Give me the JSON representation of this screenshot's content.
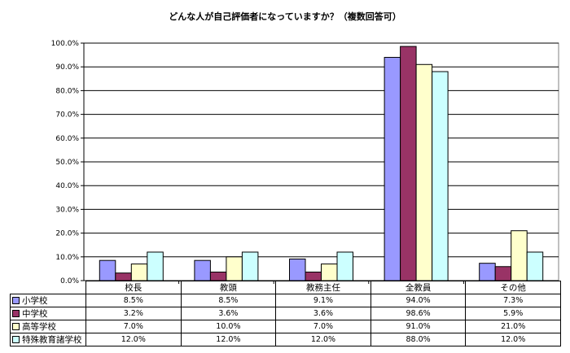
{
  "chart_data": {
    "type": "bar",
    "title": "どんな人が自己評価者になっていますか？（複数回答可）",
    "categories": [
      "校長",
      "教頭",
      "教務主任",
      "全教員",
      "その他"
    ],
    "series": [
      {
        "name": "小学校",
        "color": "#9999FF",
        "values": [
          8.5,
          8.5,
          9.1,
          94.0,
          7.3
        ],
        "labels": [
          "8.5%",
          "8.5%",
          "9.1%",
          "94.0%",
          "7.3%"
        ]
      },
      {
        "name": "中学校",
        "color": "#993366",
        "values": [
          3.2,
          3.6,
          3.6,
          98.6,
          5.9
        ],
        "labels": [
          "3.2%",
          "3.6%",
          "3.6%",
          "98.6%",
          "5.9%"
        ]
      },
      {
        "name": "高等学校",
        "color": "#FFFFCC",
        "values": [
          7.0,
          10.0,
          7.0,
          91.0,
          21.0
        ],
        "labels": [
          "7.0%",
          "10.0%",
          "7.0%",
          "91.0%",
          "21.0%"
        ]
      },
      {
        "name": "特殊教育諸学校",
        "color": "#CCFFFF",
        "values": [
          12.0,
          12.0,
          12.0,
          88.0,
          12.0
        ],
        "labels": [
          "12.0%",
          "12.0%",
          "12.0%",
          "88.0%",
          "12.0%"
        ]
      }
    ],
    "ylim": [
      0,
      100
    ],
    "yticks": [
      "0.0%",
      "10.0%",
      "20.0%",
      "30.0%",
      "40.0%",
      "50.0%",
      "60.0%",
      "70.0%",
      "80.0%",
      "90.0%",
      "100.0%"
    ],
    "grid": true,
    "legend": "data-table"
  }
}
